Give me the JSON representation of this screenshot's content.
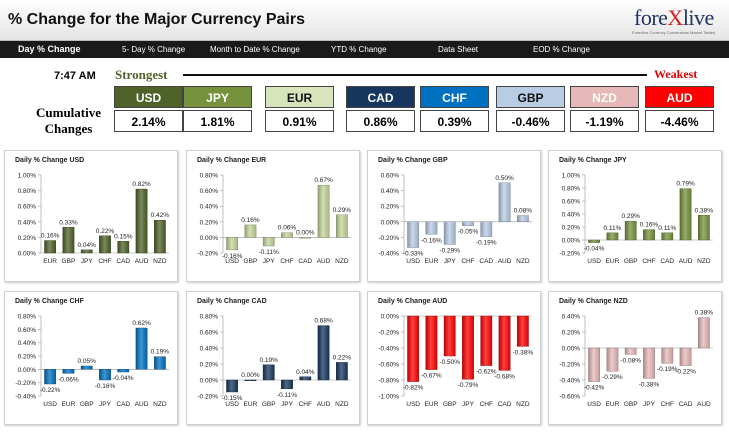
{
  "header": {
    "title": "% Change for the Major Currency Pairs",
    "logo_text_a": "fore",
    "logo_text_x": "X",
    "logo_text_b": "live",
    "logo_tag": "Forexlive Currency Conversions Market Tables"
  },
  "nav": [
    "Day % Change",
    "5- Day % Change",
    "Month to Date % Change",
    "YTD % Change",
    "Data Sheet",
    "EOD % Change"
  ],
  "time": "7:47 AM",
  "strongest_label": "Strongest",
  "weakest_label": "Weakest",
  "cumulative_label": [
    "Cumulative",
    "Changes"
  ],
  "ranking": [
    {
      "ccy": "USD",
      "value": "2.14%",
      "color": "#4f6228",
      "text_color": "#ffffff"
    },
    {
      "ccy": "JPY",
      "value": "1.81%",
      "color": "#76923c",
      "text_color": "#ffffff"
    },
    {
      "ccy": "EUR",
      "value": "0.91%",
      "color": "#d7e4bc",
      "text_color": "#111111"
    },
    {
      "ccy": "CAD",
      "value": "0.86%",
      "color": "#17375e",
      "text_color": "#ffffff"
    },
    {
      "ccy": "CHF",
      "value": "0.39%",
      "color": "#0070c0",
      "text_color": "#ffffff"
    },
    {
      "ccy": "GBP",
      "value": "-0.46%",
      "color": "#b8cce4",
      "text_color": "#111111"
    },
    {
      "ccy": "NZD",
      "value": "-1.19%",
      "color": "#e6b9b8",
      "text_color": "#ffffff"
    },
    {
      "ccy": "AUD",
      "value": "-4.46%",
      "color": "#ff0000",
      "text_color": "#ffffff"
    }
  ],
  "chart_data": [
    {
      "type": "bar",
      "title": "Daily % Change USD",
      "categories": [
        "EUR",
        "GBP",
        "JPY",
        "CHF",
        "CAD",
        "AUD",
        "NZD"
      ],
      "values": [
        0.16,
        0.33,
        0.04,
        0.22,
        0.15,
        0.82,
        0.42
      ],
      "labels": [
        "0.16%",
        "0.33%",
        "0.04%",
        "0.22%",
        "0.15%",
        "0.82%",
        "0.42%"
      ],
      "ylim": [
        0,
        1.0
      ],
      "ticks": [
        0,
        0.2,
        0.4,
        0.6,
        0.8,
        1.0
      ],
      "tick_labels": [
        "0.00%",
        "0.20%",
        "0.40%",
        "0.60%",
        "0.80%",
        "1.00%"
      ],
      "color": "#4f6228"
    },
    {
      "type": "bar",
      "title": "Daily % Change EUR",
      "categories": [
        "USD",
        "GBP",
        "JPY",
        "CHF",
        "CAD",
        "AUD",
        "NZD"
      ],
      "values": [
        -0.16,
        0.16,
        -0.11,
        0.06,
        0.0,
        0.67,
        0.29
      ],
      "labels": [
        "-0.16%",
        "0.16%",
        "-0.11%",
        "0.06%",
        "0.00%",
        "0.67%",
        "0.29%"
      ],
      "ylim": [
        -0.2,
        0.8
      ],
      "ticks": [
        -0.2,
        0,
        0.2,
        0.4,
        0.6,
        0.8
      ],
      "tick_labels": [
        "-0.20%",
        "0.00%",
        "0.20%",
        "0.40%",
        "0.60%",
        "0.80%"
      ],
      "color": "#c3d69b"
    },
    {
      "type": "bar",
      "title": "Daily % Change GBP",
      "categories": [
        "USD",
        "EUR",
        "JPY",
        "CHF",
        "CAD",
        "AUD",
        "NZD"
      ],
      "values": [
        -0.33,
        -0.16,
        -0.29,
        -0.05,
        -0.19,
        0.5,
        0.08
      ],
      "labels": [
        "-0.33%",
        "-0.16%",
        "-0.29%",
        "-0.05%",
        "-0.19%",
        "0.50%",
        "0.08%"
      ],
      "ylim": [
        -0.4,
        0.6
      ],
      "ticks": [
        -0.4,
        -0.2,
        0,
        0.2,
        0.4,
        0.6
      ],
      "tick_labels": [
        "-0.40%",
        "-0.20%",
        "0.00%",
        "0.20%",
        "0.40%",
        "0.60%"
      ],
      "color": "#b8cce4"
    },
    {
      "type": "bar",
      "title": "Daily % Change JPY",
      "categories": [
        "USD",
        "EUR",
        "GBP",
        "CHF",
        "CAD",
        "AUD",
        "NZD"
      ],
      "values": [
        -0.04,
        0.11,
        0.29,
        0.16,
        0.11,
        0.79,
        0.38
      ],
      "labels": [
        "-0.04%",
        "0.11%",
        "0.29%",
        "0.16%",
        "0.11%",
        "0.79%",
        "0.38%"
      ],
      "ylim": [
        -0.2,
        1.0
      ],
      "ticks": [
        -0.2,
        0,
        0.2,
        0.4,
        0.6,
        0.8,
        1.0
      ],
      "tick_labels": [
        "-0.20%",
        "0.00%",
        "0.20%",
        "0.40%",
        "0.60%",
        "0.80%",
        "1.00%"
      ],
      "color": "#76923c"
    },
    {
      "type": "bar",
      "title": "Daily % Change CHF",
      "categories": [
        "USD",
        "EUR",
        "GBP",
        "JPY",
        "CAD",
        "AUD",
        "NZD"
      ],
      "values": [
        -0.22,
        -0.06,
        0.05,
        -0.16,
        -0.04,
        0.62,
        0.19
      ],
      "labels": [
        "-0.22%",
        "-0.06%",
        "0.05%",
        "-0.16%",
        "-0.04%",
        "0.62%",
        "0.19%"
      ],
      "ylim": [
        -0.4,
        0.8
      ],
      "ticks": [
        -0.4,
        -0.2,
        0,
        0.2,
        0.4,
        0.6,
        0.8
      ],
      "tick_labels": [
        "-0.40%",
        "-0.20%",
        "0.00%",
        "0.20%",
        "0.40%",
        "0.60%",
        "0.80%"
      ],
      "color": "#0070c0"
    },
    {
      "type": "bar",
      "title": "Daily % Change CAD",
      "categories": [
        "USD",
        "EUR",
        "GBP",
        "JPY",
        "CHF",
        "AUD",
        "NZD"
      ],
      "values": [
        -0.15,
        0.0,
        0.19,
        -0.11,
        0.04,
        0.68,
        0.22
      ],
      "labels": [
        "-0.15%",
        "0.00%",
        "0.19%",
        "-0.11%",
        "0.04%",
        "0.68%",
        "0.22%"
      ],
      "ylim": [
        -0.2,
        0.8
      ],
      "ticks": [
        -0.2,
        0,
        0.2,
        0.4,
        0.6,
        0.8
      ],
      "tick_labels": [
        "-0.20%",
        "0.00%",
        "0.20%",
        "0.40%",
        "0.60%",
        "0.80%"
      ],
      "color": "#17375e"
    },
    {
      "type": "bar",
      "title": "Daily % Change AUD",
      "categories": [
        "USD",
        "EUR",
        "GBP",
        "JPY",
        "CHF",
        "CAD",
        "NZD"
      ],
      "values": [
        -0.82,
        -0.67,
        -0.5,
        -0.79,
        -0.62,
        -0.68,
        -0.38
      ],
      "labels": [
        "-0.82%",
        "-0.67%",
        "-0.50%",
        "-0.79%",
        "-0.62%",
        "-0.68%",
        "-0.38%"
      ],
      "ylim": [
        -1.0,
        0.0
      ],
      "ticks": [
        -1.0,
        -0.8,
        -0.6,
        -0.4,
        -0.2,
        0
      ],
      "tick_labels": [
        "-1.00%",
        "-0.80%",
        "-0.60%",
        "-0.40%",
        "-0.20%",
        "0.00%"
      ],
      "color": "#ff0000"
    },
    {
      "type": "bar",
      "title": "Daily % Change NZD",
      "categories": [
        "USD",
        "EUR",
        "GBP",
        "JPY",
        "CHF",
        "CAD",
        "AUD"
      ],
      "values": [
        -0.42,
        -0.29,
        -0.08,
        -0.38,
        -0.19,
        -0.22,
        0.38
      ],
      "labels": [
        "-0.42%",
        "-0.29%",
        "-0.08%",
        "-0.38%",
        "-0.19%",
        "-0.22%",
        "0.38%"
      ],
      "ylim": [
        -0.6,
        0.4
      ],
      "ticks": [
        -0.6,
        -0.4,
        -0.2,
        0,
        0.2,
        0.4
      ],
      "tick_labels": [
        "-0.60%",
        "-0.40%",
        "-0.20%",
        "0.00%",
        "0.20%",
        "0.40%"
      ],
      "color": "#e6b9b8"
    }
  ]
}
